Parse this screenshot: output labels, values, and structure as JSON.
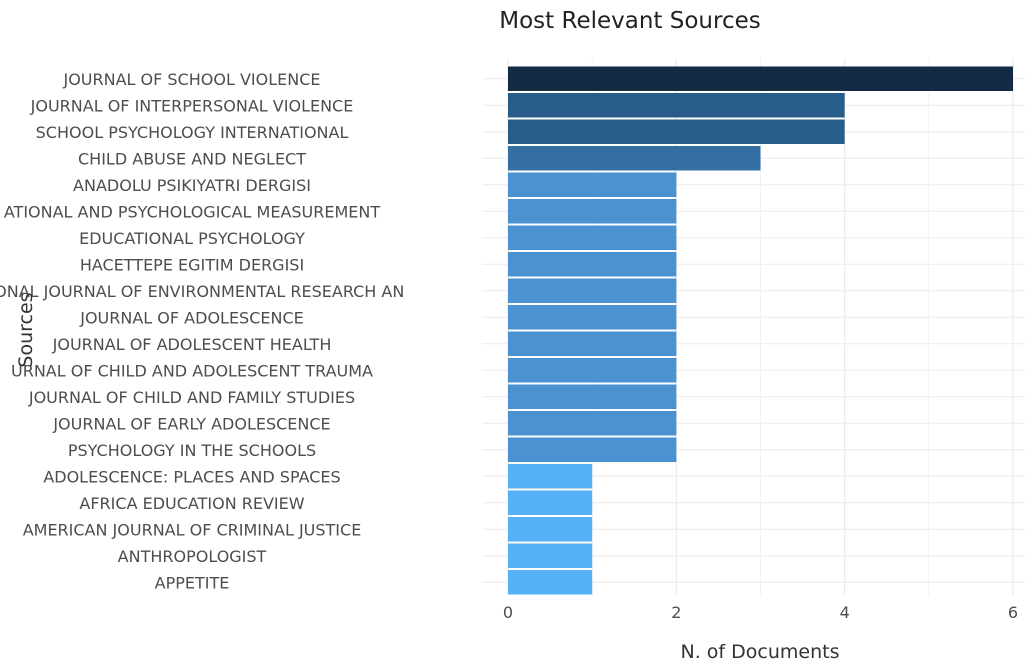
{
  "chart_data": {
    "type": "bar",
    "orientation": "horizontal",
    "title": "Most Relevant Sources",
    "xlabel": "N. of Documents",
    "ylabel": "Sources",
    "xlim": [
      0,
      6
    ],
    "xticks": [
      0,
      2,
      4,
      6
    ],
    "grid": true,
    "legend": "none",
    "categories": [
      "JOURNAL OF SCHOOL VIOLENCE",
      "JOURNAL OF INTERPERSONAL VIOLENCE",
      "SCHOOL PSYCHOLOGY INTERNATIONAL",
      "CHILD ABUSE AND NEGLECT",
      "ANADOLU PSIKIYATRI DERGISI",
      "ATIONAL AND PSYCHOLOGICAL MEASUREMENT",
      "EDUCATIONAL PSYCHOLOGY",
      "HACETTEPE EGITIM DERGISI",
      "TIONAL JOURNAL OF ENVIRONMENTAL RESEARCH AN",
      "JOURNAL OF ADOLESCENCE",
      "JOURNAL OF ADOLESCENT HEALTH",
      "URNAL OF CHILD AND ADOLESCENT TRAUMA",
      "JOURNAL OF CHILD AND FAMILY STUDIES",
      "JOURNAL OF EARLY ADOLESCENCE",
      "PSYCHOLOGY IN THE SCHOOLS",
      "ADOLESCENCE: PLACES AND SPACES",
      "AFRICA EDUCATION REVIEW",
      "AMERICAN JOURNAL OF CRIMINAL JUSTICE",
      "ANTHROPOLOGIST",
      "APPETITE"
    ],
    "values": [
      6,
      4,
      4,
      3,
      2,
      2,
      2,
      2,
      2,
      2,
      2,
      2,
      2,
      2,
      2,
      1,
      1,
      1,
      1,
      1
    ],
    "colors": {
      "6": "#132b43",
      "4": "#285d8a",
      "3": "#336fa3",
      "2": "#4a93d0",
      "1": "#56b1f7"
    },
    "gridline_color": "#ebebeb",
    "label_color": "#4d4d4d",
    "title_color": "#222222"
  }
}
